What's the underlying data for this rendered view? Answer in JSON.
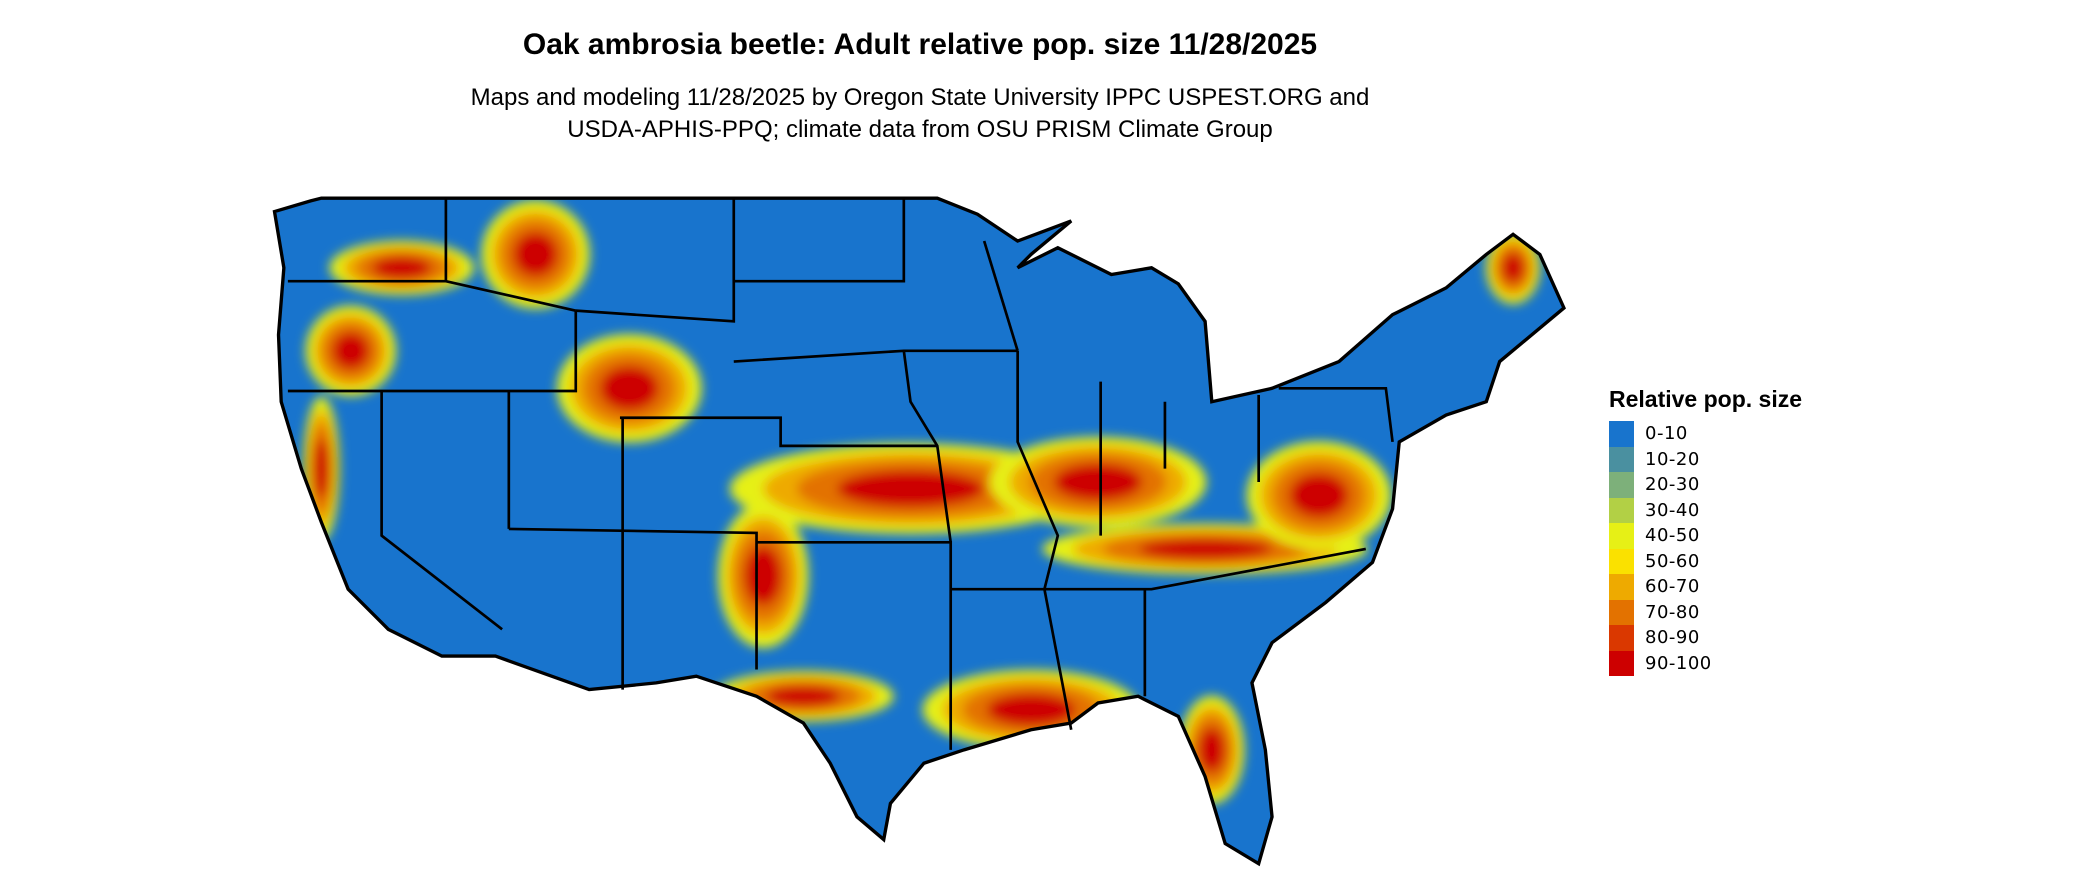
{
  "title": "Oak ambrosia beetle: Adult relative pop. size 11/28/2025",
  "subtitle_line1": "Maps and modeling 11/28/2025 by Oregon State University IPPC USPEST.ORG and",
  "subtitle_line2": "USDA-APHIS-PPQ; climate data from OSU PRISM Climate Group",
  "legend": {
    "title": "Relative pop. size",
    "items": [
      {
        "label": "0-10",
        "color": "#1874CD"
      },
      {
        "label": "10-20",
        "color": "#4A90A0"
      },
      {
        "label": "20-30",
        "color": "#7DB07A"
      },
      {
        "label": "30-40",
        "color": "#B2D045"
      },
      {
        "label": "40-50",
        "color": "#E6F016"
      },
      {
        "label": "50-60",
        "color": "#FAE100"
      },
      {
        "label": "60-70",
        "color": "#EEAA00"
      },
      {
        "label": "70-80",
        "color": "#E37200"
      },
      {
        "label": "80-90",
        "color": "#DA3800"
      },
      {
        "label": "90-100",
        "color": "#CD0000"
      }
    ]
  }
}
